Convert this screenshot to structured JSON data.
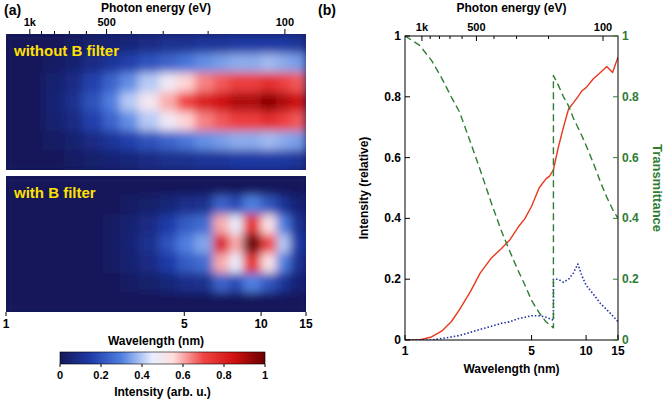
{
  "chart_data": [
    {
      "type": "heatmap",
      "panel": "(a)",
      "log": "x",
      "xlabel": "Wavelength (nm)",
      "xlim": [
        1,
        15
      ],
      "xticks": [
        1,
        5,
        10,
        15
      ],
      "x2label": "Photon energy (eV)",
      "x2lim": [
        1239.84,
        82.656
      ],
      "x2ticks": [
        {
          "value": 1000,
          "label": "1k"
        },
        500,
        100
      ],
      "x2minor_ticks": [
        900,
        800,
        700,
        600,
        400,
        300,
        200
      ],
      "x_edges": [
        1,
        1.2,
        1.4,
        1.7,
        2,
        2.4,
        2.8,
        3.3,
        4,
        4.7,
        5.5,
        6.5,
        7.5,
        8.5,
        10,
        11.5,
        13,
        15
      ],
      "images": [
        {
          "title": "without B filter",
          "cells": [
            [
              0,
              0,
              0,
              0.02,
              0.03,
              0.05,
              0.06,
              0.08,
              0.1,
              0.1,
              0.12,
              0.12,
              0.14,
              0.14,
              0.14,
              0.14,
              0.12
            ],
            [
              0,
              0,
              0.02,
              0.04,
              0.08,
              0.12,
              0.16,
              0.2,
              0.24,
              0.28,
              0.32,
              0.34,
              0.36,
              0.36,
              0.38,
              0.36,
              0.34
            ],
            [
              0,
              0,
              0.04,
              0.08,
              0.16,
              0.24,
              0.32,
              0.4,
              0.48,
              0.56,
              0.64,
              0.68,
              0.72,
              0.72,
              0.76,
              0.72,
              0.68
            ],
            [
              0,
              0,
              0.05,
              0.1,
              0.2,
              0.3,
              0.4,
              0.5,
              0.6,
              0.7,
              0.8,
              0.85,
              0.9,
              0.9,
              0.95,
              0.9,
              0.85
            ],
            [
              0,
              0,
              0.04,
              0.08,
              0.16,
              0.24,
              0.32,
              0.4,
              0.48,
              0.56,
              0.64,
              0.68,
              0.72,
              0.72,
              0.76,
              0.72,
              0.68
            ],
            [
              0,
              0,
              0.02,
              0.04,
              0.08,
              0.12,
              0.16,
              0.2,
              0.24,
              0.28,
              0.32,
              0.34,
              0.36,
              0.36,
              0.38,
              0.36,
              0.34
            ],
            [
              0,
              0,
              0,
              0.02,
              0.03,
              0.05,
              0.06,
              0.08,
              0.1,
              0.1,
              0.12,
              0.12,
              0.14,
              0.14,
              0.14,
              0.14,
              0.12
            ]
          ]
        },
        {
          "title": "with B filter",
          "cells": [
            [
              0,
              0,
              0,
              0,
              0,
              0,
              0,
              0,
              0,
              0,
              0,
              0,
              0,
              0,
              0,
              0,
              0
            ],
            [
              0,
              0,
              0,
              0,
              0,
              0,
              0.02,
              0.03,
              0.06,
              0.09,
              0.1,
              0.24,
              0.18,
              0.3,
              0.21,
              0.12,
              0.05
            ],
            [
              0,
              0,
              0,
              0,
              0,
              0.02,
              0.04,
              0.08,
              0.15,
              0.22,
              0.26,
              0.6,
              0.45,
              0.75,
              0.53,
              0.3,
              0.11
            ],
            [
              0,
              0,
              0,
              0,
              0,
              0.02,
              0.05,
              0.1,
              0.2,
              0.3,
              0.35,
              0.8,
              0.6,
              1,
              0.7,
              0.4,
              0.15
            ],
            [
              0,
              0,
              0,
              0,
              0,
              0.02,
              0.04,
              0.08,
              0.15,
              0.22,
              0.26,
              0.6,
              0.45,
              0.75,
              0.53,
              0.3,
              0.11
            ],
            [
              0,
              0,
              0,
              0,
              0,
              0,
              0.02,
              0.03,
              0.06,
              0.09,
              0.1,
              0.24,
              0.18,
              0.3,
              0.21,
              0.12,
              0.05
            ],
            [
              0,
              0,
              0,
              0,
              0,
              0,
              0,
              0,
              0,
              0,
              0,
              0,
              0,
              0,
              0,
              0,
              0
            ]
          ]
        }
      ],
      "colorbar": {
        "label": "Intensity (arb. u.)",
        "range": [
          0,
          1
        ],
        "ticks": [
          0,
          0.2,
          0.4,
          0.6,
          0.8,
          1
        ]
      }
    },
    {
      "type": "line",
      "panel": "(b)",
      "log": "x",
      "xlabel": "Wavelength (nm)",
      "ylabel": "Intensity (relative)",
      "y2label": "Transmittance",
      "xlim": [
        1,
        15
      ],
      "xticks": [
        1,
        5,
        10,
        15
      ],
      "ylim": [
        0,
        1
      ],
      "yticks": [
        0,
        0.2,
        0.4,
        0.6,
        0.8,
        1
      ],
      "y2lim": [
        0,
        1
      ],
      "y2ticks": [
        0,
        0.2,
        0.4,
        0.6,
        0.8,
        1
      ],
      "x2label": "Photon energy (eV)",
      "x2lim": [
        1239.84,
        82.656
      ],
      "x2ticks": [
        {
          "value": 1000,
          "label": "1k"
        },
        500,
        100
      ],
      "x2minor_ticks": [
        900,
        800,
        700,
        600,
        400,
        300,
        200
      ],
      "x": [
        1,
        1.2,
        1.4,
        1.6,
        1.8,
        2,
        2.3,
        2.6,
        3,
        3.4,
        3.8,
        4.2,
        4.6,
        5,
        5.5,
        6,
        6.3,
        6.6,
        6.6,
        7,
        7.5,
        8,
        8.5,
        9,
        9.5,
        10,
        11,
        12,
        13,
        14,
        15
      ],
      "series": [
        {
          "color": "#e8381e",
          "line_style": "solid",
          "values": [
            0,
            0,
            0.01,
            0.03,
            0.06,
            0.1,
            0.16,
            0.22,
            0.27,
            0.3,
            0.33,
            0.37,
            0.4,
            0.44,
            0.5,
            0.53,
            0.54,
            0.56,
            0.56,
            0.63,
            0.7,
            0.76,
            0.78,
            0.8,
            0.82,
            0.83,
            0.86,
            0.88,
            0.9,
            0.88,
            0.93
          ]
        },
        {
          "color": "#1f2fa0",
          "line_style": "dotted",
          "values": [
            0,
            0,
            0,
            0.005,
            0.01,
            0.015,
            0.025,
            0.035,
            0.045,
            0.055,
            0.06,
            0.07,
            0.075,
            0.08,
            0.08,
            0.075,
            0.07,
            0.065,
            0.2,
            0.2,
            0.19,
            0.2,
            0.22,
            0.25,
            0.21,
            0.18,
            0.15,
            0.12,
            0.1,
            0.08,
            0.06
          ]
        },
        {
          "color": "#2e7d32",
          "line_style": "dashed",
          "axis": "y2",
          "values": [
            1,
            0.97,
            0.92,
            0.86,
            0.8,
            0.75,
            0.65,
            0.56,
            0.45,
            0.36,
            0.29,
            0.23,
            0.18,
            0.13,
            0.09,
            0.06,
            0.05,
            0.04,
            0.87,
            0.84,
            0.8,
            0.77,
            0.73,
            0.7,
            0.67,
            0.64,
            0.58,
            0.52,
            0.47,
            0.43,
            0.4
          ]
        }
      ]
    }
  ]
}
